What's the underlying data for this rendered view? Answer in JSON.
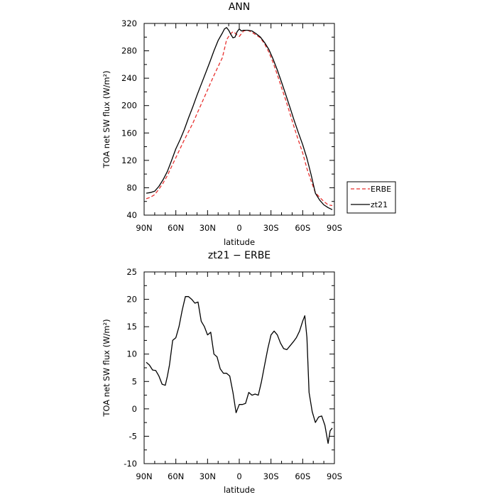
{
  "chart_data": [
    {
      "type": "line",
      "title": "ANN",
      "xlabel": "latitude",
      "ylabel": "TOA net SW flux (W/m²)",
      "xlim": [
        90,
        -90
      ],
      "ylim": [
        40,
        320
      ],
      "xticks": [
        90,
        60,
        30,
        0,
        -30,
        -60,
        -90
      ],
      "xtick_labels": [
        "90N",
        "60N",
        "30N",
        "0",
        "30S",
        "60S",
        "90S"
      ],
      "yticks": [
        40,
        80,
        120,
        160,
        200,
        240,
        280,
        320
      ],
      "legend": {
        "placement": "right",
        "entries": [
          "ERBE",
          "zt21"
        ]
      },
      "series": [
        {
          "name": "ERBE",
          "color": "#e8312f",
          "dash": "dashed",
          "x": [
            88,
            84,
            80,
            76,
            72,
            68,
            64,
            60,
            56,
            52,
            48,
            44,
            40,
            36,
            32,
            28,
            24,
            20,
            16,
            14,
            12,
            10,
            8,
            6,
            4,
            2,
            0,
            -2,
            -4,
            -8,
            -12,
            -16,
            -20,
            -24,
            -28,
            -32,
            -36,
            -40,
            -44,
            -48,
            -52,
            -56,
            -60,
            -64,
            -68,
            -72,
            -76,
            -80,
            -84,
            -88
          ],
          "y": [
            64,
            66,
            70,
            78,
            87,
            98,
            111,
            124,
            137,
            150,
            162,
            174,
            188,
            202,
            216,
            230,
            244,
            257,
            270,
            283,
            296,
            301,
            305,
            308,
            306,
            303,
            301,
            305,
            309,
            310,
            307,
            303,
            299,
            290,
            278,
            263,
            245,
            226,
            208,
            188,
            168,
            149,
            131,
            108,
            90,
            73,
            66,
            60,
            55,
            54
          ]
        },
        {
          "name": "zt21",
          "color": "#000000",
          "dash": "solid",
          "x": [
            88,
            84,
            80,
            76,
            72,
            68,
            64,
            60,
            56,
            52,
            48,
            44,
            40,
            36,
            32,
            28,
            24,
            20,
            16,
            14,
            12,
            10,
            8,
            6,
            4,
            2,
            0,
            -2,
            -4,
            -8,
            -12,
            -16,
            -20,
            -24,
            -28,
            -32,
            -36,
            -40,
            -44,
            -48,
            -52,
            -56,
            -60,
            -64,
            -68,
            -72,
            -76,
            -80,
            -84,
            -88
          ],
          "y": [
            72,
            73,
            75,
            82,
            92,
            104,
            120,
            137,
            150,
            165,
            182,
            198,
            215,
            231,
            247,
            263,
            280,
            295,
            306,
            312,
            314,
            310,
            304,
            299,
            300,
            308,
            312,
            309,
            310,
            310,
            309,
            305,
            300,
            292,
            282,
            268,
            252,
            234,
            216,
            197,
            178,
            160,
            143,
            123,
            99,
            72,
            62,
            55,
            51,
            48
          ]
        }
      ]
    },
    {
      "type": "line",
      "title": "zt21 − ERBE",
      "xlabel": "latitude",
      "ylabel": "TOA net SW flux (W/m²)",
      "xlim": [
        90,
        -90
      ],
      "ylim": [
        -10,
        25
      ],
      "xticks": [
        90,
        60,
        30,
        0,
        -30,
        -60,
        -90
      ],
      "xtick_labels": [
        "90N",
        "60N",
        "30N",
        "0",
        "30S",
        "60S",
        "90S"
      ],
      "yticks": [
        -10,
        -5,
        0,
        5,
        10,
        15,
        20,
        25
      ],
      "series": [
        {
          "color": "#000000",
          "dash": "solid",
          "x": [
            88,
            85,
            82,
            79,
            76,
            73,
            70,
            68,
            66,
            63,
            60,
            57,
            54,
            51,
            48,
            45,
            42,
            39,
            36,
            33,
            30,
            27,
            24,
            21,
            18,
            15,
            12,
            9,
            6,
            3,
            0,
            -3,
            -6,
            -9,
            -12,
            -15,
            -18,
            -21,
            -24,
            -27,
            -30,
            -33,
            -36,
            -39,
            -42,
            -45,
            -48,
            -51,
            -54,
            -57,
            -60,
            -62,
            -64,
            -66,
            -69,
            -72,
            -75,
            -78,
            -81,
            -84,
            -86,
            -88
          ],
          "y": [
            8.5,
            8.0,
            7.1,
            7.0,
            6.0,
            4.5,
            4.3,
            6.0,
            8.0,
            12.5,
            13.0,
            15.0,
            18.0,
            20.5,
            20.5,
            20.0,
            19.3,
            19.5,
            16.0,
            15.0,
            13.5,
            14.0,
            10.0,
            9.5,
            7.3,
            6.5,
            6.5,
            6.0,
            3.0,
            -0.7,
            0.8,
            0.8,
            1.0,
            3.0,
            2.5,
            2.7,
            2.5,
            5.0,
            8.0,
            11.0,
            13.5,
            14.2,
            13.5,
            12.0,
            11.0,
            10.8,
            11.5,
            12.2,
            13.0,
            14.2,
            16.0,
            17.0,
            13.0,
            3.0,
            -0.5,
            -2.5,
            -1.5,
            -1.3,
            -3.0,
            -6.3,
            -4.0,
            -3.5
          ]
        }
      ]
    }
  ]
}
